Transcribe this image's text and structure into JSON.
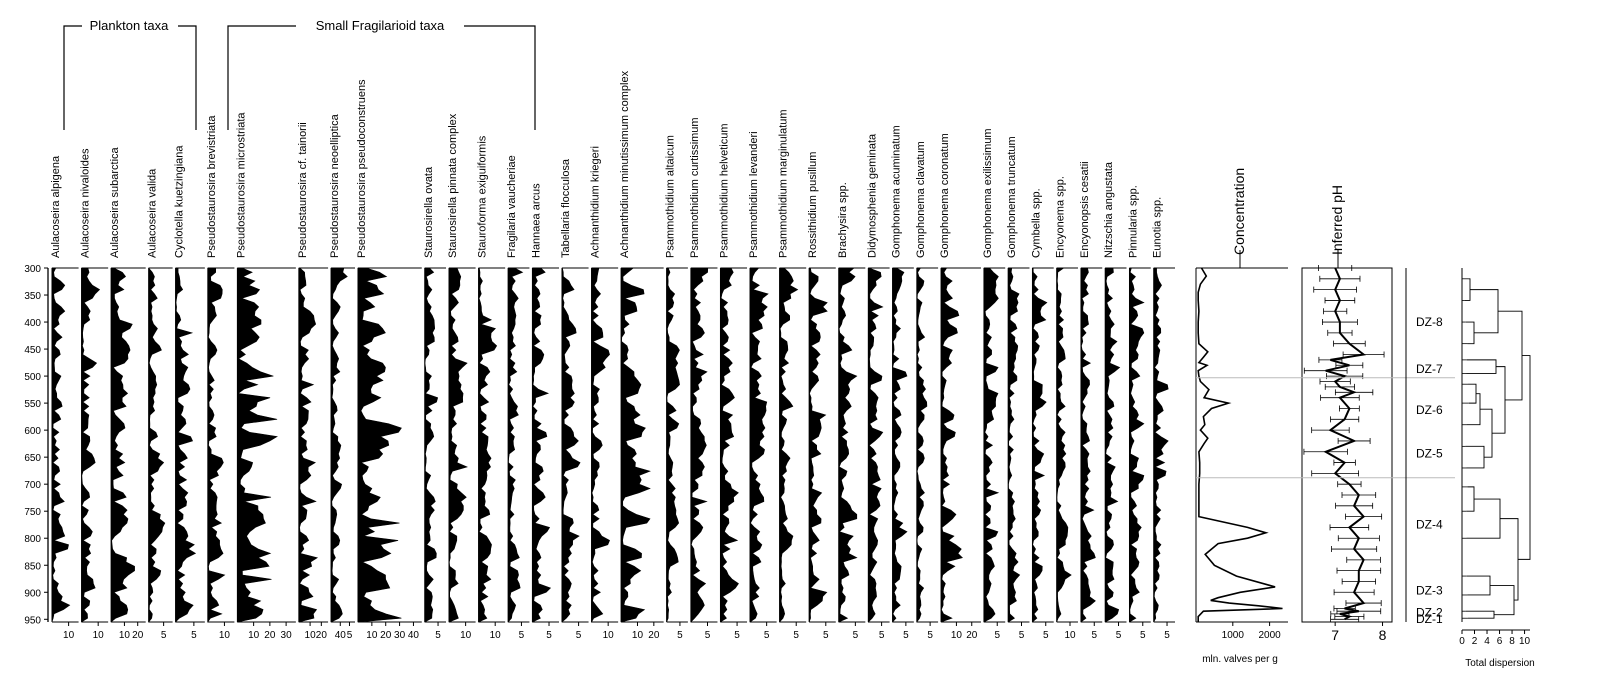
{
  "chart_data": {
    "type": "area",
    "group_labels": [
      "Plankton taxa",
      "Small Fragilarioid taxa"
    ],
    "y_ticks": [
      "300",
      "350",
      "400",
      "450",
      "500",
      "550",
      "600",
      "650",
      "700",
      "750",
      "800",
      "850",
      "900",
      "950"
    ],
    "depth_range": [
      300,
      955
    ],
    "taxa": [
      {
        "name": "Aulacoseira alpigena",
        "ticks": [
          "10"
        ],
        "profile": "alp"
      },
      {
        "name": "Aulacoseira nivaloides",
        "ticks": [
          "10"
        ],
        "profile": "niv"
      },
      {
        "name": "Aulacoseira subarctica",
        "ticks": [
          "10",
          "20"
        ],
        "profile": "sub"
      },
      {
        "name": "Aulacoseira valida",
        "ticks": [
          "5"
        ],
        "profile": "val"
      },
      {
        "name": "Cyclotella kuetzingiana",
        "ticks": [
          "5"
        ],
        "profile": "cyc"
      },
      {
        "name": "Pseudostaurosira brevistriata",
        "ticks": [
          "10"
        ],
        "profile": "bre"
      },
      {
        "name": "Pseudostaurosira microstriata",
        "ticks": [
          "10",
          "20",
          "30"
        ],
        "profile": "mic"
      },
      {
        "name": "Pseudostaurosira cf. tainorii",
        "ticks": [
          "10",
          "20"
        ],
        "profile": "tai"
      },
      {
        "name": "Pseudostaurosira neoelliptica",
        "ticks": [
          "40",
          "5"
        ],
        "profile": "neo"
      },
      {
        "name": "Pseudostaurosira pseudoconstruens",
        "ticks": [
          "10",
          "20",
          "30",
          "40"
        ],
        "profile": "pse"
      },
      {
        "name": "Staurosirella ovata",
        "ticks": [
          "5"
        ],
        "profile": "ova"
      },
      {
        "name": "Staurosirella pinnata complex",
        "ticks": [
          "10"
        ],
        "profile": "pin"
      },
      {
        "name": "Stauroforma exiguiformis",
        "ticks": [
          "10"
        ],
        "profile": "exi"
      },
      {
        "name": "Fragilaria vaucheriae",
        "ticks": [
          "5"
        ],
        "profile": "fra"
      },
      {
        "name": "Hannaea arcus",
        "ticks": [
          "5"
        ],
        "profile": "han"
      },
      {
        "name": "Tabellaria flocculosa",
        "ticks": [
          "5"
        ],
        "profile": "tab"
      },
      {
        "name": "Achnanthidium kriegeri",
        "ticks": [
          "10"
        ],
        "profile": "kri"
      },
      {
        "name": "Achnanthidium minutissimum complex",
        "ticks": [
          "10",
          "20"
        ],
        "profile": "min"
      },
      {
        "name": "Psammothidium altaicum",
        "ticks": [
          "5"
        ],
        "profile": "alt"
      },
      {
        "name": "Psammothidium curtissimum",
        "ticks": [
          "5"
        ],
        "profile": "cur"
      },
      {
        "name": "Psammothidium helveticum",
        "ticks": [
          "5"
        ],
        "profile": "hel"
      },
      {
        "name": "Psammothidium levanderi",
        "ticks": [
          "5"
        ],
        "profile": "lev"
      },
      {
        "name": "Psammothidium marginulatum",
        "ticks": [
          "5"
        ],
        "profile": "mar"
      },
      {
        "name": "Rossithidium pusillum",
        "ticks": [
          "5"
        ],
        "profile": "ros"
      },
      {
        "name": "Brachysira spp.",
        "ticks": [
          "5"
        ],
        "profile": "bra"
      },
      {
        "name": "Didymosphenia geminata",
        "ticks": [
          "5"
        ],
        "profile": "did"
      },
      {
        "name": "Gomphonema acuminatum",
        "ticks": [
          "5"
        ],
        "profile": "acu"
      },
      {
        "name": "Gomphonema clavatum",
        "ticks": [
          "5"
        ],
        "profile": "cla"
      },
      {
        "name": "Gomphonema coronatum",
        "ticks": [
          "10",
          "20"
        ],
        "profile": "cor"
      },
      {
        "name": "Gomphonema exilissimum",
        "ticks": [
          "5"
        ],
        "profile": "exl"
      },
      {
        "name": "Gomphonema truncatum",
        "ticks": [
          "5"
        ],
        "profile": "tru"
      },
      {
        "name": "Cymbella spp.",
        "ticks": [
          "5"
        ],
        "profile": "cym"
      },
      {
        "name": "Encyonema spp.",
        "ticks": [
          "10"
        ],
        "profile": "enc"
      },
      {
        "name": "Encyonopsis cesatii",
        "ticks": [
          "5"
        ],
        "profile": "ces"
      },
      {
        "name": "Nitzschia angustata",
        "ticks": [
          "5"
        ],
        "profile": "nit"
      },
      {
        "name": "Pinnularia spp.",
        "ticks": [
          "5"
        ],
        "profile": "pnn"
      },
      {
        "name": "Eunotia spp.",
        "ticks": [
          "5"
        ],
        "profile": "eun"
      }
    ],
    "concentration": {
      "title": "Concentration",
      "xlabel": "mln. valves per g",
      "ticks": [
        "1000",
        "2000"
      ],
      "xlim": [
        0,
        2500
      ],
      "depths": [
        300,
        315,
        330,
        345,
        360,
        380,
        400,
        420,
        440,
        455,
        465,
        475,
        480,
        490,
        500,
        510,
        525,
        540,
        550,
        560,
        575,
        590,
        600,
        615,
        625,
        640,
        660,
        680,
        700,
        720,
        740,
        760,
        780,
        790,
        800,
        810,
        830,
        850,
        870,
        890,
        900,
        910,
        915,
        920,
        925,
        930,
        935,
        945,
        955
      ],
      "values": [
        150,
        280,
        120,
        60,
        60,
        80,
        60,
        60,
        80,
        320,
        200,
        80,
        300,
        60,
        80,
        120,
        350,
        220,
        880,
        420,
        200,
        240,
        120,
        320,
        220,
        80,
        100,
        100,
        80,
        80,
        80,
        80,
        1400,
        1900,
        1400,
        600,
        250,
        500,
        1100,
        2150,
        1200,
        600,
        400,
        900,
        1700,
        2350,
        200,
        60,
        60
      ]
    },
    "ph": {
      "title": "Inferred pH",
      "ticks": [
        "7",
        "8"
      ],
      "xlim": [
        6.3,
        8.2
      ],
      "depths": [
        300,
        320,
        340,
        360,
        380,
        400,
        420,
        440,
        460,
        470,
        480,
        490,
        500,
        510,
        520,
        530,
        540,
        560,
        580,
        600,
        620,
        640,
        660,
        680,
        700,
        720,
        740,
        760,
        780,
        800,
        820,
        840,
        860,
        880,
        900,
        920,
        930,
        935,
        940,
        945,
        950
      ],
      "values": [
        7.0,
        7.1,
        7.0,
        7.1,
        7.0,
        7.1,
        7.1,
        7.3,
        7.6,
        6.9,
        7.3,
        6.8,
        7.2,
        7.0,
        7.1,
        7.4,
        7.1,
        7.3,
        7.2,
        6.9,
        7.4,
        6.8,
        7.2,
        7.0,
        7.3,
        7.5,
        7.4,
        7.6,
        7.3,
        7.5,
        7.4,
        7.6,
        7.5,
        7.5,
        7.4,
        7.6,
        7.2,
        7.5,
        7.1,
        7.3,
        7.2
      ]
    },
    "zones": [
      {
        "label": "DZ-8",
        "depth": 400
      },
      {
        "label": "DZ-7",
        "depth": 487
      },
      {
        "label": "DZ-6",
        "depth": 563
      },
      {
        "label": "DZ-5",
        "depth": 643
      },
      {
        "label": "DZ-4",
        "depth": 775
      },
      {
        "label": "DZ-3",
        "depth": 897
      },
      {
        "label": "DZ-2",
        "depth": 937
      },
      {
        "label": "DZ-1",
        "depth": 949
      }
    ],
    "zone_lines": [
      503,
      688
    ],
    "dendrogram": {
      "xlabel": "Total dispersion",
      "ticks": [
        "0",
        "2",
        "4",
        "6",
        "8",
        "10"
      ]
    }
  }
}
